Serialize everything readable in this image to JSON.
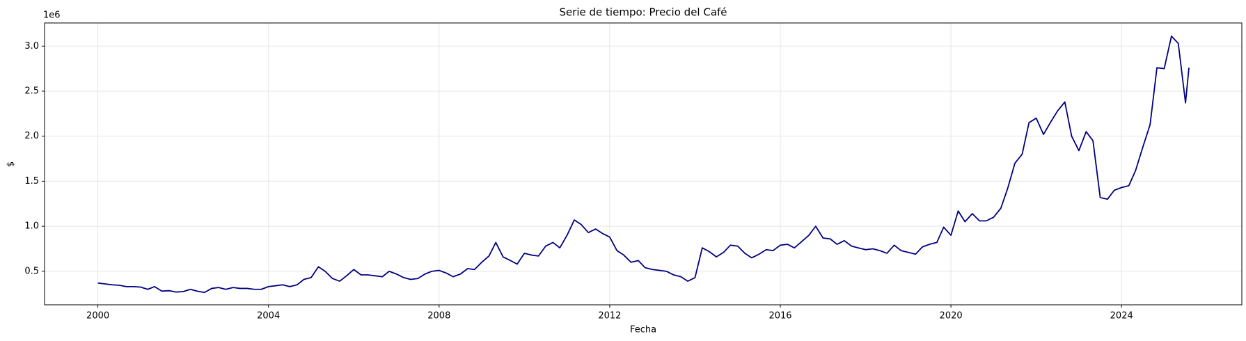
{
  "chart_data": {
    "type": "line",
    "title": "Serie de tiempo: Precio del Café",
    "xlabel": "Fecha",
    "ylabel": "$",
    "y_offset_label": "1e6",
    "color": "#000080",
    "grid": true,
    "x": [
      2000.0,
      2000.17,
      2000.33,
      2000.5,
      2000.67,
      2000.83,
      2001.0,
      2001.17,
      2001.33,
      2001.5,
      2001.67,
      2001.83,
      2002.0,
      2002.17,
      2002.33,
      2002.5,
      2002.67,
      2002.83,
      2003.0,
      2003.17,
      2003.33,
      2003.5,
      2003.67,
      2003.83,
      2004.0,
      2004.17,
      2004.33,
      2004.5,
      2004.67,
      2004.83,
      2005.0,
      2005.17,
      2005.33,
      2005.5,
      2005.67,
      2005.83,
      2006.0,
      2006.17,
      2006.33,
      2006.5,
      2006.67,
      2006.83,
      2007.0,
      2007.17,
      2007.33,
      2007.5,
      2007.67,
      2007.83,
      2008.0,
      2008.17,
      2008.33,
      2008.5,
      2008.67,
      2008.83,
      2009.0,
      2009.17,
      2009.33,
      2009.5,
      2009.67,
      2009.83,
      2010.0,
      2010.17,
      2010.33,
      2010.5,
      2010.67,
      2010.83,
      2011.0,
      2011.17,
      2011.33,
      2011.5,
      2011.67,
      2011.83,
      2012.0,
      2012.17,
      2012.33,
      2012.5,
      2012.67,
      2012.83,
      2013.0,
      2013.17,
      2013.33,
      2013.5,
      2013.67,
      2013.83,
      2014.0,
      2014.17,
      2014.33,
      2014.5,
      2014.67,
      2014.83,
      2015.0,
      2015.17,
      2015.33,
      2015.5,
      2015.67,
      2015.83,
      2016.0,
      2016.17,
      2016.33,
      2016.5,
      2016.67,
      2016.83,
      2017.0,
      2017.17,
      2017.33,
      2017.5,
      2017.67,
      2017.83,
      2018.0,
      2018.17,
      2018.33,
      2018.5,
      2018.67,
      2018.83,
      2019.0,
      2019.17,
      2019.33,
      2019.5,
      2019.67,
      2019.83,
      2020.0,
      2020.17,
      2020.33,
      2020.5,
      2020.67,
      2020.83,
      2021.0,
      2021.17,
      2021.33,
      2021.5,
      2021.67,
      2021.83,
      2022.0,
      2022.17,
      2022.33,
      2022.5,
      2022.67,
      2022.83,
      2023.0,
      2023.17,
      2023.33,
      2023.5,
      2023.67,
      2023.83,
      2024.0,
      2024.17,
      2024.33,
      2024.5,
      2024.67,
      2024.83,
      2025.0,
      2025.17,
      2025.33,
      2025.5,
      2025.58
    ],
    "values": [
      0.37,
      0.36,
      0.35,
      0.345,
      0.33,
      0.33,
      0.325,
      0.3,
      0.33,
      0.28,
      0.285,
      0.27,
      0.275,
      0.3,
      0.28,
      0.265,
      0.31,
      0.32,
      0.3,
      0.32,
      0.31,
      0.31,
      0.3,
      0.3,
      0.33,
      0.34,
      0.35,
      0.33,
      0.35,
      0.41,
      0.43,
      0.55,
      0.5,
      0.42,
      0.39,
      0.45,
      0.52,
      0.46,
      0.46,
      0.45,
      0.44,
      0.5,
      0.47,
      0.43,
      0.41,
      0.42,
      0.47,
      0.5,
      0.51,
      0.48,
      0.44,
      0.47,
      0.53,
      0.52,
      0.6,
      0.67,
      0.82,
      0.66,
      0.62,
      0.58,
      0.7,
      0.68,
      0.67,
      0.78,
      0.82,
      0.76,
      0.9,
      1.07,
      1.02,
      0.93,
      0.97,
      0.92,
      0.88,
      0.73,
      0.68,
      0.6,
      0.62,
      0.54,
      0.52,
      0.51,
      0.5,
      0.46,
      0.44,
      0.39,
      0.43,
      0.76,
      0.72,
      0.66,
      0.71,
      0.79,
      0.78,
      0.7,
      0.65,
      0.69,
      0.74,
      0.73,
      0.79,
      0.8,
      0.76,
      0.83,
      0.9,
      1.0,
      0.87,
      0.86,
      0.8,
      0.84,
      0.78,
      0.76,
      0.74,
      0.75,
      0.73,
      0.7,
      0.79,
      0.73,
      0.71,
      0.69,
      0.77,
      0.8,
      0.82,
      0.99,
      0.9,
      1.17,
      1.05,
      1.14,
      1.06,
      1.06,
      1.1,
      1.2,
      1.42,
      1.7,
      1.8,
      2.15,
      2.2,
      2.02,
      2.15,
      2.28,
      2.38,
      2.0,
      1.84,
      2.05,
      1.95,
      1.32,
      1.3,
      1.4,
      1.43,
      1.45,
      1.62,
      1.88,
      2.13,
      2.76,
      2.75,
      3.11,
      3.03,
      2.37,
      2.76
    ],
    "xlim": [
      1998.75,
      2026.82
    ],
    "xticks": [
      2000,
      2004,
      2008,
      2012,
      2016,
      2020,
      2024
    ],
    "ylim": [
      0.128,
      3.257
    ],
    "yticks": [
      0.5,
      {
        "value": 1,
        "label": "1.0"
      },
      1.5,
      {
        "value": 2,
        "label": "2.0"
      },
      2.5,
      {
        "value": 3,
        "label": "3.0"
      }
    ]
  }
}
